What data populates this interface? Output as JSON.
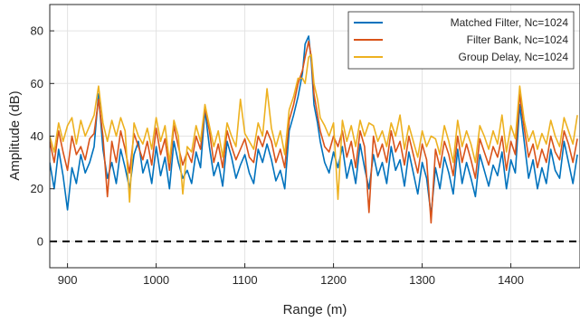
{
  "chart_data": {
    "type": "line",
    "xlabel": "Range (m)",
    "ylabel": "Amplitude (dB)",
    "xlim": [
      880,
      1478
    ],
    "ylim": [
      -10,
      90
    ],
    "xticks": [
      900,
      1000,
      1100,
      1200,
      1300,
      1400
    ],
    "yticks": [
      0,
      20,
      40,
      60,
      80
    ],
    "grid": true,
    "legend_position": "top-right",
    "reference_line": {
      "y": 0,
      "style": "dashed",
      "color": "#000000"
    },
    "series": [
      {
        "name": "Matched Filter, Nc=1024",
        "color": "#0072BD",
        "x": [
          880,
          885,
          890,
          895,
          900,
          905,
          910,
          915,
          920,
          925,
          930,
          935,
          940,
          945,
          950,
          955,
          960,
          965,
          970,
          975,
          980,
          985,
          990,
          995,
          1000,
          1005,
          1010,
          1015,
          1020,
          1025,
          1030,
          1035,
          1040,
          1045,
          1050,
          1055,
          1060,
          1065,
          1070,
          1075,
          1080,
          1085,
          1090,
          1095,
          1100,
          1105,
          1110,
          1115,
          1120,
          1125,
          1130,
          1135,
          1140,
          1145,
          1150,
          1155,
          1160,
          1165,
          1168,
          1172,
          1175,
          1178,
          1182,
          1185,
          1190,
          1195,
          1200,
          1205,
          1210,
          1215,
          1220,
          1225,
          1230,
          1235,
          1240,
          1245,
          1250,
          1255,
          1260,
          1265,
          1270,
          1275,
          1280,
          1285,
          1290,
          1295,
          1300,
          1305,
          1310,
          1315,
          1320,
          1325,
          1330,
          1335,
          1340,
          1345,
          1350,
          1355,
          1360,
          1365,
          1370,
          1375,
          1380,
          1385,
          1390,
          1395,
          1400,
          1405,
          1410,
          1415,
          1420,
          1425,
          1430,
          1435,
          1440,
          1445,
          1450,
          1455,
          1460,
          1465,
          1470,
          1475
        ],
        "values": [
          30,
          20,
          35,
          25,
          12,
          28,
          22,
          33,
          26,
          30,
          36,
          56,
          35,
          24,
          30,
          22,
          35,
          28,
          20,
          33,
          38,
          26,
          31,
          22,
          36,
          25,
          32,
          20,
          38,
          30,
          24,
          27,
          22,
          34,
          28,
          50,
          36,
          25,
          30,
          21,
          38,
          32,
          24,
          29,
          33,
          26,
          22,
          35,
          30,
          37,
          31,
          23,
          27,
          20,
          42,
          48,
          55,
          64,
          75,
          78,
          68,
          52,
          45,
          38,
          30,
          26,
          34,
          28,
          36,
          24,
          31,
          22,
          37,
          28,
          20,
          33,
          25,
          30,
          22,
          36,
          27,
          31,
          21,
          34,
          26,
          18,
          30,
          24,
          10,
          28,
          20,
          32,
          26,
          18,
          35,
          22,
          30,
          24,
          17,
          33,
          27,
          21,
          29,
          25,
          34,
          20,
          31,
          26,
          52,
          38,
          24,
          31,
          20,
          28,
          22,
          35,
          27,
          24,
          38,
          30,
          22,
          33
        ]
      },
      {
        "name": "Filter Bank, Nc=1024",
        "color": "#D95319",
        "x": [
          880,
          885,
          890,
          895,
          900,
          905,
          910,
          915,
          920,
          925,
          930,
          935,
          940,
          945,
          950,
          955,
          960,
          965,
          970,
          975,
          980,
          985,
          990,
          995,
          1000,
          1005,
          1010,
          1015,
          1020,
          1025,
          1030,
          1035,
          1040,
          1045,
          1050,
          1055,
          1060,
          1065,
          1070,
          1075,
          1080,
          1085,
          1090,
          1095,
          1100,
          1105,
          1110,
          1115,
          1120,
          1125,
          1130,
          1135,
          1140,
          1145,
          1150,
          1155,
          1160,
          1165,
          1168,
          1172,
          1175,
          1178,
          1182,
          1185,
          1190,
          1195,
          1200,
          1205,
          1210,
          1215,
          1220,
          1225,
          1230,
          1235,
          1240,
          1245,
          1250,
          1255,
          1260,
          1265,
          1270,
          1275,
          1280,
          1285,
          1290,
          1295,
          1300,
          1305,
          1310,
          1315,
          1320,
          1325,
          1330,
          1335,
          1340,
          1345,
          1350,
          1355,
          1360,
          1365,
          1370,
          1375,
          1380,
          1385,
          1390,
          1395,
          1400,
          1405,
          1410,
          1415,
          1420,
          1425,
          1430,
          1435,
          1440,
          1445,
          1450,
          1455,
          1460,
          1465,
          1470,
          1475
        ],
        "values": [
          38,
          30,
          42,
          34,
          27,
          40,
          33,
          36,
          31,
          39,
          41,
          54,
          40,
          17,
          38,
          30,
          42,
          35,
          26,
          41,
          36,
          31,
          38,
          29,
          43,
          33,
          39,
          27,
          44,
          36,
          29,
          34,
          30,
          40,
          35,
          51,
          42,
          30,
          37,
          28,
          42,
          36,
          31,
          35,
          39,
          32,
          30,
          40,
          36,
          42,
          38,
          30,
          35,
          28,
          46,
          52,
          60,
          65,
          70,
          76,
          70,
          56,
          48,
          42,
          36,
          34,
          40,
          36,
          42,
          32,
          38,
          28,
          42,
          36,
          11,
          40,
          32,
          37,
          30,
          42,
          34,
          38,
          29,
          40,
          33,
          26,
          37,
          31,
          7,
          35,
          28,
          38,
          33,
          25,
          40,
          30,
          37,
          31,
          24,
          39,
          34,
          29,
          36,
          32,
          40,
          27,
          38,
          33,
          56,
          43,
          32,
          37,
          28,
          35,
          30,
          40,
          34,
          31,
          42,
          37,
          30,
          39
        ]
      },
      {
        "name": "Group Delay, Nc=1024",
        "color": "#EDB120",
        "x": [
          880,
          885,
          890,
          895,
          900,
          905,
          910,
          915,
          920,
          925,
          930,
          935,
          940,
          945,
          950,
          955,
          960,
          965,
          970,
          975,
          980,
          985,
          990,
          995,
          1000,
          1005,
          1010,
          1015,
          1020,
          1025,
          1030,
          1035,
          1040,
          1045,
          1050,
          1055,
          1060,
          1065,
          1070,
          1075,
          1080,
          1085,
          1090,
          1095,
          1100,
          1105,
          1110,
          1115,
          1120,
          1125,
          1130,
          1135,
          1140,
          1145,
          1150,
          1155,
          1160,
          1165,
          1168,
          1172,
          1175,
          1178,
          1182,
          1185,
          1190,
          1195,
          1200,
          1205,
          1210,
          1215,
          1220,
          1225,
          1230,
          1235,
          1240,
          1245,
          1250,
          1255,
          1260,
          1265,
          1270,
          1275,
          1280,
          1285,
          1290,
          1295,
          1300,
          1305,
          1310,
          1315,
          1320,
          1325,
          1330,
          1335,
          1340,
          1345,
          1350,
          1355,
          1360,
          1365,
          1370,
          1375,
          1380,
          1385,
          1390,
          1395,
          1400,
          1405,
          1410,
          1415,
          1420,
          1425,
          1430,
          1435,
          1440,
          1445,
          1450,
          1455,
          1460,
          1465,
          1470,
          1475
        ],
        "values": [
          40,
          34,
          45,
          38,
          44,
          47,
          37,
          46,
          40,
          44,
          48,
          59,
          45,
          38,
          46,
          40,
          47,
          42,
          15,
          45,
          40,
          37,
          43,
          35,
          47,
          38,
          44,
          30,
          46,
          40,
          18,
          36,
          34,
          44,
          38,
          52,
          44,
          36,
          42,
          32,
          45,
          40,
          36,
          54,
          41,
          38,
          35,
          45,
          40,
          58,
          43,
          36,
          42,
          33,
          50,
          55,
          62,
          62,
          60,
          70,
          71,
          60,
          54,
          47,
          44,
          40,
          45,
          16,
          46,
          38,
          44,
          36,
          46,
          40,
          45,
          44,
          38,
          42,
          36,
          45,
          40,
          48,
          35,
          44,
          38,
          32,
          42,
          36,
          40,
          39,
          33,
          44,
          38,
          30,
          46,
          36,
          42,
          37,
          30,
          44,
          40,
          35,
          42,
          37,
          48,
          34,
          44,
          39,
          59,
          46,
          38,
          42,
          35,
          41,
          37,
          46,
          40,
          36,
          47,
          42,
          37,
          48
        ]
      }
    ]
  }
}
